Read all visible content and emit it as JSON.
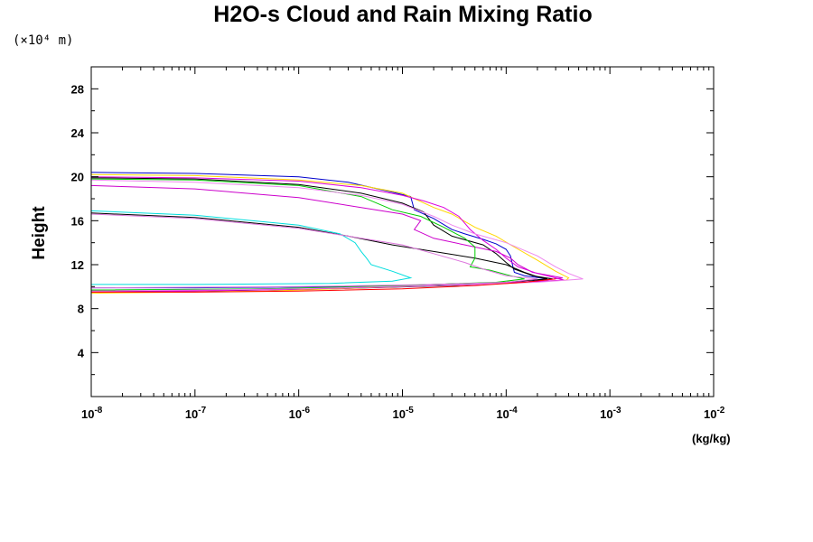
{
  "chart_data": {
    "type": "line",
    "title": "H2O-s Cloud and Rain Mixing Ratio",
    "yunit": "(×10⁴ m)",
    "ylabel": "Height",
    "xlabel": "(kg/kg)",
    "x_scale": "log",
    "xlim": [
      1e-08,
      0.01
    ],
    "ylim": [
      0,
      30
    ],
    "x_ticks": [
      {
        "value": 1e-08,
        "base": "10",
        "exp": "-8"
      },
      {
        "value": 1e-07,
        "base": "10",
        "exp": "-7"
      },
      {
        "value": 1e-06,
        "base": "10",
        "exp": "-6"
      },
      {
        "value": 1e-05,
        "base": "10",
        "exp": "-5"
      },
      {
        "value": 0.0001,
        "base": "10",
        "exp": "-4"
      },
      {
        "value": 0.001,
        "base": "10",
        "exp": "-3"
      },
      {
        "value": 0.01,
        "base": "10",
        "exp": "-2"
      }
    ],
    "y_ticks": [
      "4",
      "8",
      "12",
      "16",
      "20",
      "24",
      "28"
    ],
    "grid": false,
    "legend": "none",
    "series": [
      {
        "color": "#0000cc",
        "points": [
          [
            1e-08,
            20.4
          ],
          [
            1e-07,
            20.3
          ],
          [
            1e-06,
            20.0
          ],
          [
            3e-06,
            19.5
          ],
          [
            8e-06,
            18.6
          ],
          [
            1.2e-05,
            18.2
          ],
          [
            1.3e-05,
            17.0
          ],
          [
            2e-05,
            16.2
          ],
          [
            3e-05,
            15.2
          ],
          [
            4e-05,
            14.8
          ],
          [
            6e-05,
            14.3
          ],
          [
            8e-05,
            13.9
          ],
          [
            0.0001,
            13.4
          ],
          [
            0.00011,
            12.8
          ],
          [
            0.000115,
            12.0
          ],
          [
            0.00012,
            11.3
          ],
          [
            0.00015,
            11.0
          ],
          [
            0.00025,
            10.7
          ],
          [
            0.00015,
            10.4
          ],
          [
            4e-05,
            10.2
          ],
          [
            3e-06,
            10.0
          ],
          [
            1e-07,
            9.9
          ],
          [
            1e-08,
            9.9
          ]
        ]
      },
      {
        "color": "#000000",
        "points": [
          [
            1e-08,
            19.9
          ],
          [
            1e-07,
            19.8
          ],
          [
            1e-06,
            19.3
          ],
          [
            4e-06,
            18.5
          ],
          [
            1e-05,
            17.6
          ],
          [
            1.6e-05,
            16.8
          ],
          [
            2e-05,
            15.6
          ],
          [
            3e-05,
            14.6
          ],
          [
            6e-05,
            13.8
          ],
          [
            8e-05,
            13.0
          ],
          [
            0.0001,
            12.2
          ],
          [
            0.00012,
            11.6
          ],
          [
            0.00018,
            11.0
          ],
          [
            0.00028,
            10.7
          ],
          [
            0.00015,
            10.4
          ],
          [
            3e-05,
            10.1
          ],
          [
            2e-06,
            9.8
          ],
          [
            1e-07,
            9.6
          ],
          [
            1e-08,
            9.6
          ]
        ]
      },
      {
        "color": "#000000",
        "points": [
          [
            1e-08,
            16.7
          ],
          [
            1e-07,
            16.3
          ],
          [
            1e-06,
            15.4
          ],
          [
            3e-06,
            14.6
          ],
          [
            8e-06,
            13.8
          ],
          [
            2e-05,
            13.2
          ],
          [
            5e-05,
            12.6
          ],
          [
            0.0001,
            12.0
          ],
          [
            0.00015,
            11.3
          ],
          [
            0.0002,
            10.9
          ],
          [
            0.00025,
            10.7
          ],
          [
            0.0001,
            10.4
          ],
          [
            2e-05,
            10.2
          ],
          [
            2e-06,
            9.9
          ],
          [
            1e-07,
            9.7
          ],
          [
            1e-08,
            9.7
          ]
        ]
      },
      {
        "color": "#ffd700",
        "points": [
          [
            1e-08,
            20.2
          ],
          [
            1e-07,
            20.1
          ],
          [
            1e-06,
            19.7
          ],
          [
            4e-06,
            19.2
          ],
          [
            1e-05,
            18.5
          ],
          [
            2e-05,
            17.2
          ],
          [
            3e-05,
            16.6
          ],
          [
            5e-05,
            15.4
          ],
          [
            8e-05,
            14.6
          ],
          [
            0.00012,
            13.6
          ],
          [
            0.0002,
            12.4
          ],
          [
            0.0003,
            11.4
          ],
          [
            0.0004,
            10.8
          ],
          [
            0.00038,
            10.6
          ],
          [
            0.0001,
            10.3
          ],
          [
            1e-05,
            10.0
          ],
          [
            5e-07,
            9.6
          ],
          [
            1e-08,
            9.4
          ]
        ]
      },
      {
        "color": "#cc00cc",
        "points": [
          [
            1e-08,
            19.2
          ],
          [
            1e-07,
            18.9
          ],
          [
            1e-06,
            18.1
          ],
          [
            4e-06,
            17.2
          ],
          [
            1e-05,
            16.6
          ],
          [
            1.5e-05,
            16.0
          ],
          [
            1.3e-05,
            15.2
          ],
          [
            2e-05,
            14.4
          ],
          [
            4e-05,
            13.8
          ],
          [
            8e-05,
            13.2
          ],
          [
            0.00011,
            12.6
          ],
          [
            0.00013,
            12.0
          ],
          [
            0.00018,
            11.3
          ],
          [
            0.00035,
            10.8
          ],
          [
            0.0002,
            10.5
          ],
          [
            5e-05,
            10.2
          ],
          [
            3e-06,
            9.9
          ],
          [
            1e-07,
            9.6
          ],
          [
            1e-08,
            9.5
          ]
        ]
      },
      {
        "color": "#dd00dd",
        "points": [
          [
            1e-08,
            20.0
          ],
          [
            1e-07,
            19.9
          ],
          [
            1e-06,
            19.6
          ],
          [
            4e-06,
            19.0
          ],
          [
            1e-05,
            18.3
          ],
          [
            1.6e-05,
            17.8
          ],
          [
            2.5e-05,
            17.2
          ],
          [
            3.5e-05,
            16.4
          ],
          [
            4.5e-05,
            15.2
          ],
          [
            6e-05,
            14.2
          ],
          [
            8e-05,
            13.4
          ],
          [
            0.0001,
            12.6
          ],
          [
            0.00013,
            11.8
          ],
          [
            0.0002,
            11.2
          ],
          [
            0.0003,
            10.8
          ],
          [
            0.00036,
            10.6
          ],
          [
            0.0001,
            10.3
          ],
          [
            1e-05,
            10.0
          ],
          [
            5e-07,
            9.7
          ],
          [
            1e-08,
            9.6
          ]
        ]
      },
      {
        "color": "#00cc00",
        "points": [
          [
            1e-08,
            19.8
          ],
          [
            1e-07,
            19.7
          ],
          [
            1e-06,
            19.2
          ],
          [
            4e-06,
            18.2
          ],
          [
            8e-06,
            17.0
          ],
          [
            1.5e-05,
            16.4
          ],
          [
            2.5e-05,
            15.4
          ],
          [
            4e-05,
            14.4
          ],
          [
            5e-05,
            13.6
          ],
          [
            5e-05,
            12.6
          ],
          [
            4.5e-05,
            11.8
          ],
          [
            7e-05,
            11.5
          ],
          [
            0.00011,
            11.0
          ],
          [
            0.00015,
            10.7
          ],
          [
            8e-05,
            10.4
          ],
          [
            1e-05,
            10.1
          ],
          [
            5e-07,
            9.8
          ],
          [
            1e-08,
            9.7
          ]
        ]
      },
      {
        "color": "#00dddd",
        "points": [
          [
            1e-08,
            16.9
          ],
          [
            1e-07,
            16.5
          ],
          [
            1e-06,
            15.6
          ],
          [
            2.5e-06,
            14.8
          ],
          [
            3.5e-06,
            14.0
          ],
          [
            4e-06,
            13.2
          ],
          [
            4.5e-06,
            12.6
          ],
          [
            5e-06,
            12.0
          ],
          [
            8e-06,
            11.4
          ],
          [
            1.2e-05,
            10.8
          ],
          [
            8e-06,
            10.5
          ],
          [
            2e-06,
            10.3
          ],
          [
            1e-07,
            10.2
          ],
          [
            1e-08,
            10.2
          ]
        ]
      },
      {
        "color": "#ee88ee",
        "points": [
          [
            1e-08,
            19.7
          ],
          [
            1e-07,
            19.5
          ],
          [
            1e-06,
            19.0
          ],
          [
            4e-06,
            18.3
          ],
          [
            1e-05,
            17.5
          ],
          [
            2e-05,
            16.4
          ],
          [
            3e-05,
            15.6
          ],
          [
            5e-05,
            14.8
          ],
          [
            0.0001,
            14.0
          ],
          [
            0.0002,
            12.8
          ],
          [
            0.0003,
            11.8
          ],
          [
            0.0004,
            11.2
          ],
          [
            0.00055,
            10.7
          ],
          [
            0.0002,
            10.4
          ],
          [
            2e-05,
            10.1
          ],
          [
            1e-06,
            9.8
          ],
          [
            1e-08,
            9.6
          ]
        ]
      },
      {
        "color": "#dd77dd",
        "points": [
          [
            1e-08,
            16.6
          ],
          [
            1e-07,
            16.2
          ],
          [
            1e-06,
            15.3
          ],
          [
            3e-06,
            14.6
          ],
          [
            1e-05,
            13.8
          ],
          [
            2e-05,
            13.0
          ],
          [
            4e-05,
            12.2
          ],
          [
            6e-05,
            11.6
          ],
          [
            0.0001,
            11.0
          ],
          [
            0.0002,
            10.7
          ],
          [
            0.0001,
            10.4
          ],
          [
            2e-05,
            10.2
          ],
          [
            1e-06,
            10.0
          ],
          [
            1e-08,
            9.9
          ]
        ]
      },
      {
        "color": "#ff0000",
        "points": [
          [
            1e-08,
            9.5
          ],
          [
            1e-07,
            9.5
          ],
          [
            1e-06,
            9.6
          ],
          [
            1e-05,
            9.8
          ],
          [
            5e-05,
            10.1
          ],
          [
            0.00015,
            10.4
          ],
          [
            0.0003,
            10.7
          ]
        ]
      }
    ]
  }
}
